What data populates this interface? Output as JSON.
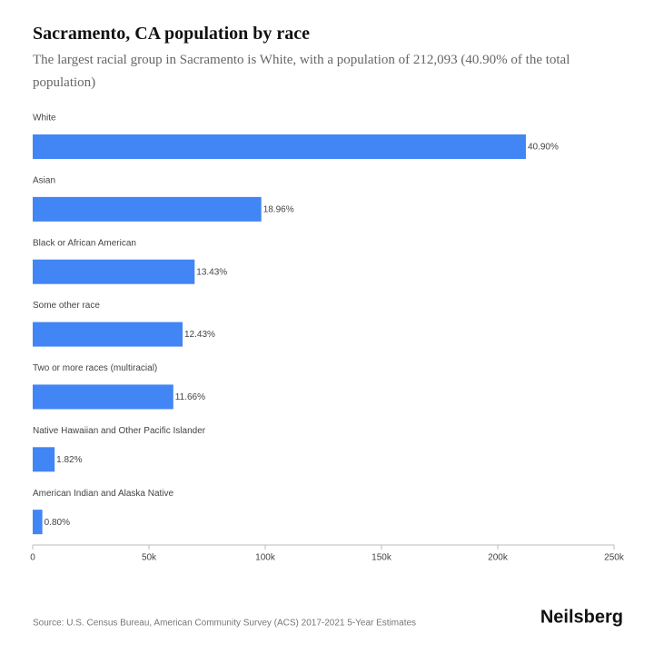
{
  "chart_data": {
    "type": "barh",
    "title": "Sacramento, CA population by race",
    "subtitle": "The largest racial group in Sacramento is White, with a population of 212,093 (40.90% of the total population)",
    "categories": [
      "White",
      "Asian",
      "Black or African American",
      "Some other race",
      "Two or more races (multiracial)",
      "Native Hawaiian and Other Pacific Islander",
      "American Indian and Alaska Native"
    ],
    "values": [
      212093,
      98320,
      69643,
      64458,
      60465,
      9438,
      4149
    ],
    "value_labels": [
      "40.90%",
      "18.96%",
      "13.43%",
      "12.43%",
      "11.66%",
      "1.82%",
      "0.80%"
    ],
    "color": "#4285f4",
    "xlim": [
      0,
      250000
    ],
    "xticks": [
      0,
      {
        "value": 50000,
        "label": "50k"
      },
      {
        "value": 100000,
        "label": "100k"
      },
      {
        "value": 150000,
        "label": "150k"
      },
      {
        "value": 200000,
        "label": "200k"
      },
      {
        "value": 250000,
        "label": "250k"
      }
    ],
    "source": "Source: U.S. Census Bureau, American Community Survey (ACS) 2017-2021 5-Year Estimates",
    "brand": "Neilsberg"
  }
}
